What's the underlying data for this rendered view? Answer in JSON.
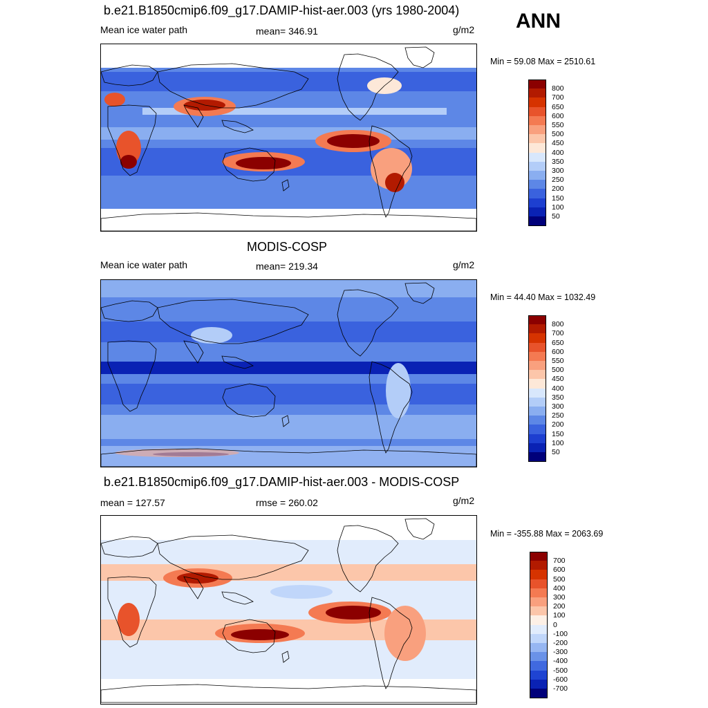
{
  "season": "ANN",
  "panels": [
    {
      "title": "b.e21.B1850cmip6.f09_g17.DAMIP-hist-aer.003 (yrs 1980-2004)",
      "left_label": "Mean ice water path",
      "center_label": "mean= 346.91",
      "units": "g/m2",
      "minmax": "Min =  59.08 Max = 2510.61",
      "scheme": "model",
      "colorbar": {
        "labels": [
          "800",
          "700",
          "650",
          "600",
          "550",
          "500",
          "450",
          "400",
          "350",
          "300",
          "250",
          "200",
          "150",
          "100",
          "50"
        ],
        "colors": [
          "#8b0000",
          "#b21a00",
          "#d63300",
          "#e8532b",
          "#f47a52",
          "#f9a07e",
          "#fcc6aa",
          "#fde8d8",
          "#d8e7fc",
          "#b3cdf8",
          "#8aaef0",
          "#5d87e6",
          "#3a62de",
          "#1d3fd0",
          "#0a22b4",
          "#00007a"
        ]
      }
    },
    {
      "title": "MODIS-COSP",
      "left_label": "Mean ice water path",
      "center_label": "mean= 219.34",
      "units": "g/m2",
      "minmax": "Min =  44.40 Max = 1032.49",
      "scheme": "obs",
      "colorbar": {
        "labels": [
          "800",
          "700",
          "650",
          "600",
          "550",
          "500",
          "450",
          "400",
          "350",
          "300",
          "250",
          "200",
          "150",
          "100",
          "50"
        ],
        "colors": [
          "#8b0000",
          "#b21a00",
          "#d63300",
          "#e8532b",
          "#f47a52",
          "#f9a07e",
          "#fcc6aa",
          "#fde8d8",
          "#d8e7fc",
          "#b3cdf8",
          "#8aaef0",
          "#5d87e6",
          "#3a62de",
          "#1d3fd0",
          "#0a22b4",
          "#00007a"
        ]
      }
    },
    {
      "title": "b.e21.B1850cmip6.f09_g17.DAMIP-hist-aer.003 - MODIS-COSP",
      "left_label": "mean = 127.57",
      "center_label": "rmse = 260.02",
      "units": "g/m2",
      "minmax": "Min = -355.88 Max = 2063.69",
      "scheme": "diff",
      "colorbar": {
        "labels": [
          "700",
          "600",
          "500",
          "400",
          "300",
          "200",
          "100",
          "0",
          "-100",
          "-200",
          "-300",
          "-400",
          "-500",
          "-600",
          "-700"
        ],
        "colors": [
          "#8b0000",
          "#b21a00",
          "#d63300",
          "#e8532b",
          "#f47a52",
          "#f9a07e",
          "#fcc6aa",
          "#fdf0e6",
          "#e1ecfc",
          "#c0d6fa",
          "#96b6f2",
          "#6a92e8",
          "#4069df",
          "#1f44d2",
          "#0a22b4",
          "#00007a"
        ]
      }
    }
  ]
}
